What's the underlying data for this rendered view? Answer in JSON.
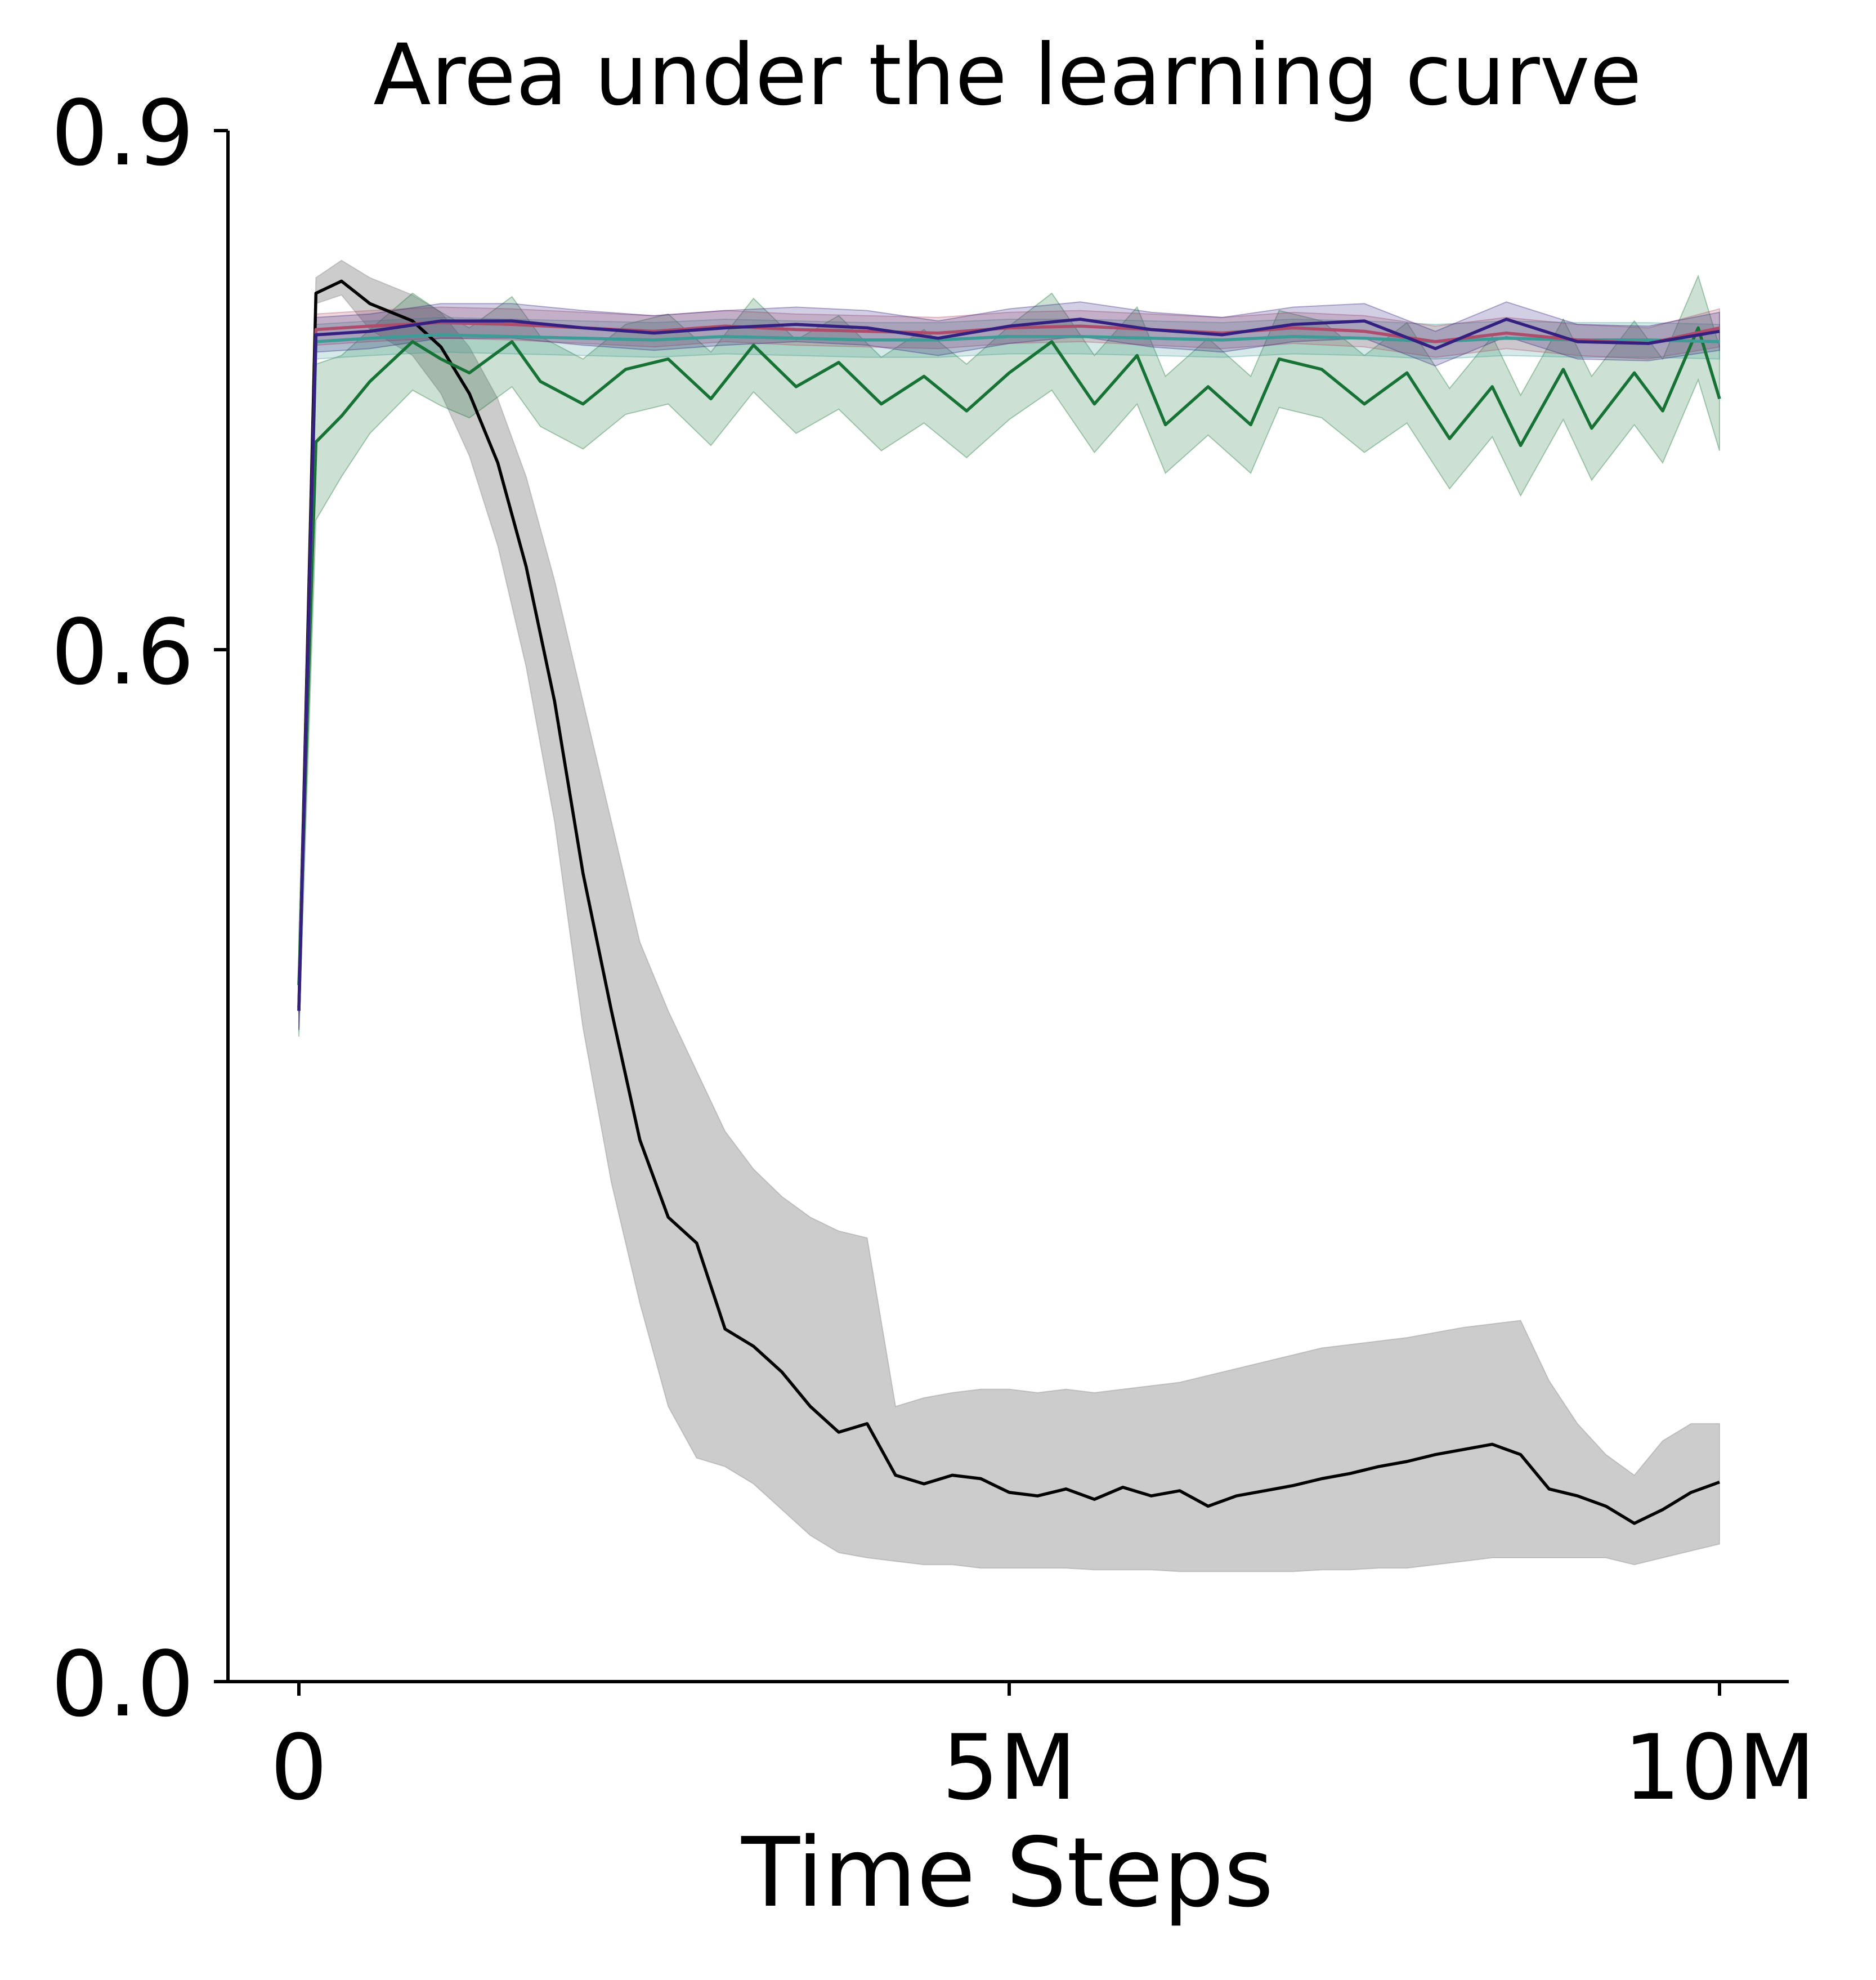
{
  "chart_data": {
    "type": "line",
    "title": "Area under the learning curve",
    "xlabel": "Time Steps",
    "ylabel": "",
    "xlim": [
      -0.5,
      10.5
    ],
    "ylim": [
      0,
      0.9
    ],
    "y_scale": "piecewise (0.0–0.6 compressed, 0.6–0.9 expanded)",
    "x_ticks": [
      {
        "value": 0,
        "label": "0"
      },
      {
        "value": 5,
        "label": "5M"
      },
      {
        "value": 10,
        "label": "10M"
      }
    ],
    "y_ticks": [
      {
        "value": 0.0,
        "label": "0.0"
      },
      {
        "value": 0.6,
        "label": "0.6"
      },
      {
        "value": 0.9,
        "label": "0.9"
      }
    ],
    "grid": false,
    "legend": "none",
    "series": [
      {
        "color": "#ae4d6b",
        "x": [
          0,
          0.12,
          0.5,
          1.0,
          1.5,
          2.0,
          2.5,
          3.0,
          3.5,
          4.0,
          4.5,
          5.0,
          5.5,
          6.0,
          6.5,
          7.0,
          7.5,
          8.0,
          8.5,
          9.0,
          9.5,
          10.0
        ],
        "y": [
          0.39,
          0.785,
          0.787,
          0.789,
          0.788,
          0.786,
          0.784,
          0.787,
          0.785,
          0.784,
          0.783,
          0.786,
          0.787,
          0.785,
          0.783,
          0.786,
          0.784,
          0.778,
          0.783,
          0.779,
          0.777,
          0.786
        ],
        "band": [
          0.011,
          0.009,
          0.009,
          0.009,
          0.009,
          0.009,
          0.009,
          0.009,
          0.009,
          0.009,
          0.009,
          0.009,
          0.009,
          0.009,
          0.009,
          0.009,
          0.009,
          0.009,
          0.009,
          0.009,
          0.009,
          0.011
        ]
      },
      {
        "color": "#342080",
        "x": [
          0,
          0.12,
          0.5,
          1.0,
          1.5,
          2.0,
          2.5,
          3.0,
          3.5,
          4.0,
          4.5,
          5.0,
          5.5,
          6.0,
          6.5,
          7.0,
          7.5,
          8.0,
          8.5,
          9.0,
          9.5,
          10.0
        ],
        "y": [
          0.39,
          0.782,
          0.784,
          0.79,
          0.79,
          0.786,
          0.783,
          0.786,
          0.788,
          0.786,
          0.78,
          0.787,
          0.791,
          0.785,
          0.782,
          0.788,
          0.79,
          0.774,
          0.791,
          0.778,
          0.777,
          0.784
        ],
        "band": [
          0.011,
          0.01,
          0.01,
          0.01,
          0.01,
          0.01,
          0.01,
          0.01,
          0.01,
          0.01,
          0.01,
          0.01,
          0.01,
          0.01,
          0.01,
          0.01,
          0.01,
          0.01,
          0.01,
          0.01,
          0.01,
          0.011
        ]
      },
      {
        "color": "#3d9c96",
        "x": [
          0,
          0.12,
          0.5,
          1.0,
          1.5,
          2.0,
          2.5,
          3.0,
          3.5,
          4.0,
          4.5,
          5.0,
          5.5,
          6.0,
          6.5,
          7.0,
          7.5,
          8.0,
          8.5,
          9.0,
          9.5,
          10.0
        ],
        "y": [
          0.39,
          0.778,
          0.78,
          0.782,
          0.781,
          0.78,
          0.779,
          0.781,
          0.78,
          0.779,
          0.779,
          0.781,
          0.781,
          0.78,
          0.779,
          0.781,
          0.78,
          0.778,
          0.78,
          0.779,
          0.779,
          0.778
        ],
        "band": [
          0.012,
          0.01,
          0.01,
          0.01,
          0.01,
          0.01,
          0.01,
          0.01,
          0.01,
          0.01,
          0.01,
          0.01,
          0.01,
          0.01,
          0.01,
          0.01,
          0.01,
          0.01,
          0.01,
          0.01,
          0.01,
          0.01
        ]
      },
      {
        "color": "#177335",
        "x": [
          0,
          0.12,
          0.3,
          0.5,
          0.8,
          1.0,
          1.2,
          1.5,
          1.7,
          2.0,
          2.3,
          2.6,
          2.9,
          3.2,
          3.5,
          3.8,
          4.1,
          4.4,
          4.7,
          5.0,
          5.3,
          5.6,
          5.9,
          6.1,
          6.4,
          6.7,
          6.9,
          7.2,
          7.5,
          7.8,
          8.1,
          8.4,
          8.6,
          8.9,
          9.1,
          9.4,
          9.6,
          9.85,
          10.0
        ],
        "y": [
          0.405,
          0.72,
          0.735,
          0.755,
          0.778,
          0.768,
          0.76,
          0.778,
          0.755,
          0.742,
          0.762,
          0.768,
          0.745,
          0.776,
          0.752,
          0.766,
          0.742,
          0.758,
          0.738,
          0.76,
          0.778,
          0.742,
          0.77,
          0.73,
          0.752,
          0.73,
          0.768,
          0.762,
          0.742,
          0.76,
          0.722,
          0.752,
          0.718,
          0.762,
          0.728,
          0.76,
          0.738,
          0.786,
          0.745
        ],
        "band": [
          0.03,
          0.045,
          0.035,
          0.03,
          0.028,
          0.027,
          0.026,
          0.026,
          0.026,
          0.026,
          0.026,
          0.026,
          0.027,
          0.027,
          0.027,
          0.027,
          0.027,
          0.027,
          0.027,
          0.027,
          0.028,
          0.028,
          0.028,
          0.028,
          0.028,
          0.028,
          0.028,
          0.028,
          0.028,
          0.029,
          0.029,
          0.029,
          0.029,
          0.029,
          0.03,
          0.03,
          0.03,
          0.03,
          0.03
        ]
      },
      {
        "color": "#000000",
        "x": [
          0,
          0.12,
          0.3,
          0.5,
          0.8,
          1.0,
          1.2,
          1.4,
          1.6,
          1.8,
          2.0,
          2.2,
          2.4,
          2.6,
          2.8,
          3.0,
          3.2,
          3.4,
          3.6,
          3.8,
          4.0,
          4.2,
          4.4,
          4.6,
          4.8,
          5.0,
          5.2,
          5.4,
          5.6,
          5.8,
          6.0,
          6.2,
          6.4,
          6.6,
          6.8,
          7.0,
          7.2,
          7.4,
          7.6,
          7.8,
          8.0,
          8.2,
          8.4,
          8.6,
          8.8,
          9.0,
          9.2,
          9.4,
          9.6,
          9.8,
          10.0
        ],
        "y": [
          0.392,
          0.806,
          0.813,
          0.8,
          0.79,
          0.775,
          0.748,
          0.708,
          0.648,
          0.57,
          0.47,
          0.39,
          0.315,
          0.27,
          0.255,
          0.205,
          0.195,
          0.18,
          0.16,
          0.145,
          0.15,
          0.12,
          0.115,
          0.12,
          0.118,
          0.11,
          0.108,
          0.112,
          0.106,
          0.113,
          0.108,
          0.111,
          0.102,
          0.108,
          0.111,
          0.114,
          0.118,
          0.121,
          0.125,
          0.128,
          0.132,
          0.135,
          0.138,
          0.132,
          0.112,
          0.108,
          0.102,
          0.092,
          0.1,
          0.11,
          0.116
        ],
        "lower": [
          0.388,
          0.8,
          0.805,
          0.785,
          0.77,
          0.748,
          0.712,
          0.66,
          0.59,
          0.5,
          0.38,
          0.29,
          0.22,
          0.16,
          0.13,
          0.125,
          0.115,
          0.1,
          0.085,
          0.075,
          0.072,
          0.07,
          0.068,
          0.068,
          0.066,
          0.066,
          0.066,
          0.066,
          0.065,
          0.065,
          0.065,
          0.064,
          0.064,
          0.064,
          0.064,
          0.064,
          0.065,
          0.065,
          0.066,
          0.066,
          0.068,
          0.07,
          0.072,
          0.072,
          0.072,
          0.072,
          0.072,
          0.068,
          0.072,
          0.076,
          0.08
        ],
        "upper": [
          0.396,
          0.815,
          0.825,
          0.815,
          0.805,
          0.795,
          0.775,
          0.745,
          0.7,
          0.64,
          0.57,
          0.5,
          0.43,
          0.39,
          0.355,
          0.32,
          0.298,
          0.282,
          0.27,
          0.262,
          0.258,
          0.16,
          0.165,
          0.168,
          0.17,
          0.17,
          0.168,
          0.17,
          0.168,
          0.17,
          0.172,
          0.174,
          0.178,
          0.182,
          0.186,
          0.19,
          0.194,
          0.196,
          0.198,
          0.2,
          0.203,
          0.206,
          0.208,
          0.21,
          0.175,
          0.15,
          0.132,
          0.12,
          0.14,
          0.15,
          0.15
        ]
      }
    ]
  }
}
